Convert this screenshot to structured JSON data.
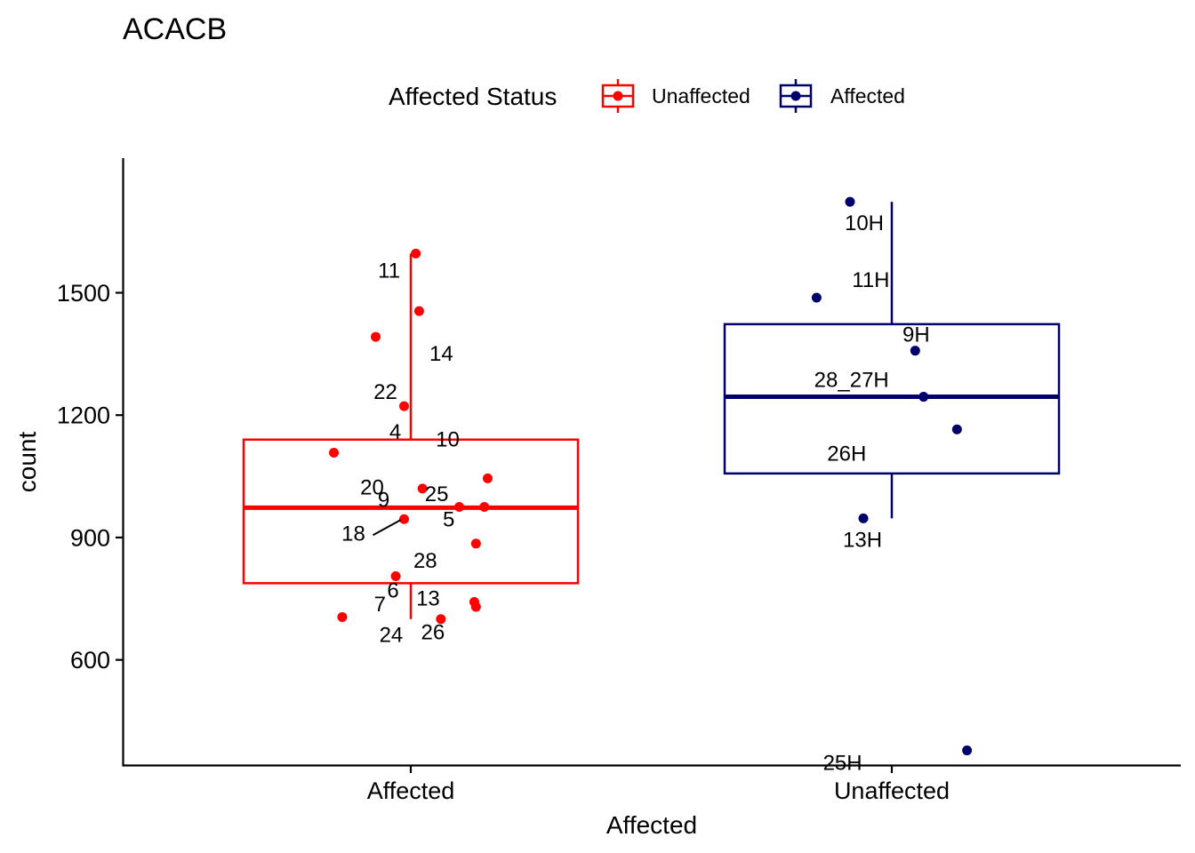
{
  "chart_data": {
    "type": "boxplot",
    "title": "ACACB",
    "xlabel": "Affected",
    "ylabel": "count",
    "ylim": [
      340,
      1830
    ],
    "yticks": [
      600,
      900,
      1200,
      1500
    ],
    "categories": [
      "Affected",
      "Unaffected"
    ],
    "legend": {
      "title": "Affected Status",
      "position": "top",
      "entries": [
        {
          "name": "Unaffected",
          "color": "#FF0000"
        },
        {
          "name": "Affected",
          "color": "#00006B"
        }
      ]
    },
    "groups": [
      {
        "category": "Affected",
        "series": "Unaffected",
        "color": "#FF0000",
        "box": {
          "min": 700,
          "q1": 788,
          "median": 973,
          "q3": 1140,
          "max": 1596
        },
        "points": [
          {
            "label": "11",
            "x_offset": 0.03,
            "y": 1596
          },
          {
            "label": "14",
            "x_offset": 0.05,
            "y": 1455
          },
          {
            "label": "4",
            "x_offset": -0.21,
            "y": 1392
          },
          {
            "label": "22",
            "x_offset": -0.04,
            "y": 1222
          },
          {
            "label": "10",
            "x_offset": -0.46,
            "y": 1108
          },
          {
            "label": "20",
            "x_offset": 0.46,
            "y": 1045
          },
          {
            "label": "25",
            "x_offset": 0.07,
            "y": 1020
          },
          {
            "label": "9",
            "x_offset": 0.29,
            "y": 975
          },
          {
            "label": "5",
            "x_offset": 0.44,
            "y": 975
          },
          {
            "label": "18",
            "x_offset": -0.04,
            "y": 945
          },
          {
            "label": "28",
            "x_offset": 0.39,
            "y": 885
          },
          {
            "label": "6",
            "x_offset": -0.09,
            "y": 805
          },
          {
            "label": "13",
            "x_offset": 0.38,
            "y": 742
          },
          {
            "label": "7",
            "x_offset": 0.39,
            "y": 730
          },
          {
            "label": "24",
            "x_offset": -0.41,
            "y": 705
          },
          {
            "label": "26",
            "x_offset": 0.18,
            "y": 700
          }
        ]
      },
      {
        "category": "Unaffected",
        "series": "Affected",
        "color": "#00006B",
        "box": {
          "min": 947,
          "q1": 1057,
          "median": 1245,
          "q3": 1423,
          "max": 1723
        },
        "points": [
          {
            "label": "10H",
            "x_offset": -0.25,
            "y": 1723
          },
          {
            "label": "11H",
            "x_offset": -0.45,
            "y": 1488
          },
          {
            "label": "9H",
            "x_offset": 0.14,
            "y": 1358
          },
          {
            "label": "28_27H",
            "x_offset": 0.19,
            "y": 1245
          },
          {
            "label": "26H",
            "x_offset": 0.39,
            "y": 1165
          },
          {
            "label": "13H",
            "x_offset": -0.17,
            "y": 947
          },
          {
            "label": "25H",
            "x_offset": 0.45,
            "y": 378
          }
        ]
      }
    ]
  }
}
